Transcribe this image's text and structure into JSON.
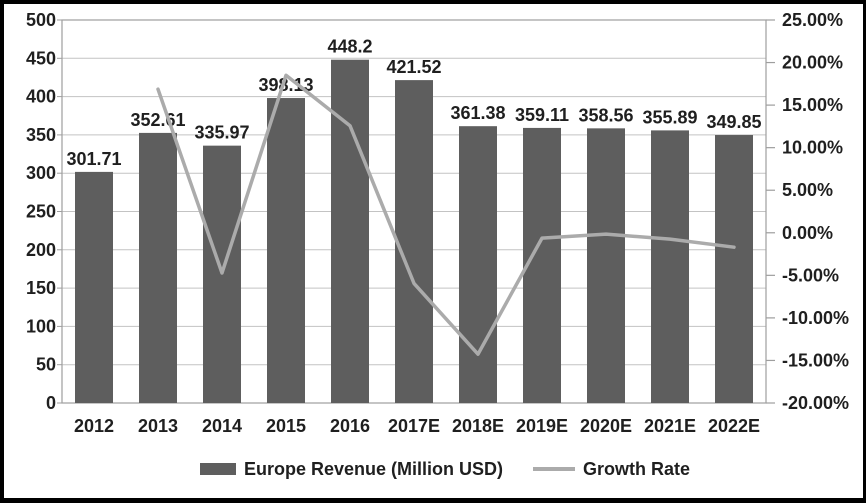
{
  "chart_data": {
    "type": "combo (bar + line)",
    "categories": [
      "2012",
      "2013",
      "2014",
      "2015",
      "2016",
      "2017E",
      "2018E",
      "2019E",
      "2020E",
      "2021E",
      "2022E"
    ],
    "series": [
      {
        "name": "Europe Revenue (Million USD)",
        "type": "bar",
        "axis": "left",
        "values": [
          301.71,
          352.61,
          335.97,
          398.13,
          448.2,
          421.52,
          361.38,
          359.11,
          358.56,
          355.89,
          349.85
        ],
        "labels": [
          "301.71",
          "352.61",
          "335.97",
          "398.13",
          "448.2",
          "421.52",
          "361.38",
          "359.11",
          "358.56",
          "355.89",
          "349.85"
        ]
      },
      {
        "name": "Growth Rate",
        "type": "line",
        "axis": "right",
        "values_percent": [
          null,
          16.87,
          -4.72,
          18.5,
          12.58,
          -5.95,
          -14.27,
          -0.63,
          -0.15,
          -0.74,
          -1.7
        ]
      }
    ],
    "left_axis": {
      "min": 0,
      "max": 500,
      "step": 50,
      "tick_labels": [
        "500",
        "450",
        "400",
        "350",
        "300",
        "250",
        "200",
        "150",
        "100",
        "50",
        "0"
      ]
    },
    "right_axis": {
      "min": -20,
      "max": 25,
      "step": 5,
      "tick_labels": [
        "25.00%",
        "20.00%",
        "15.00%",
        "10.00%",
        "5.00%",
        "0.00%",
        "-5.00%",
        "-10.00%",
        "-15.00%",
        "-20.00%"
      ]
    },
    "legend": {
      "position": "bottom",
      "items": [
        "Europe Revenue (Million USD)",
        "Growth Rate"
      ]
    },
    "grid": "horizontal gridlines on, follow left axis",
    "title": "",
    "colors": {
      "bar": "#5e5e5e",
      "line": "#ababab",
      "grid": "#c3c3c3",
      "plot_border": "#9e9e9e",
      "text": "#1f1f1f",
      "frame": "#000000",
      "background": "#ffffff"
    }
  }
}
